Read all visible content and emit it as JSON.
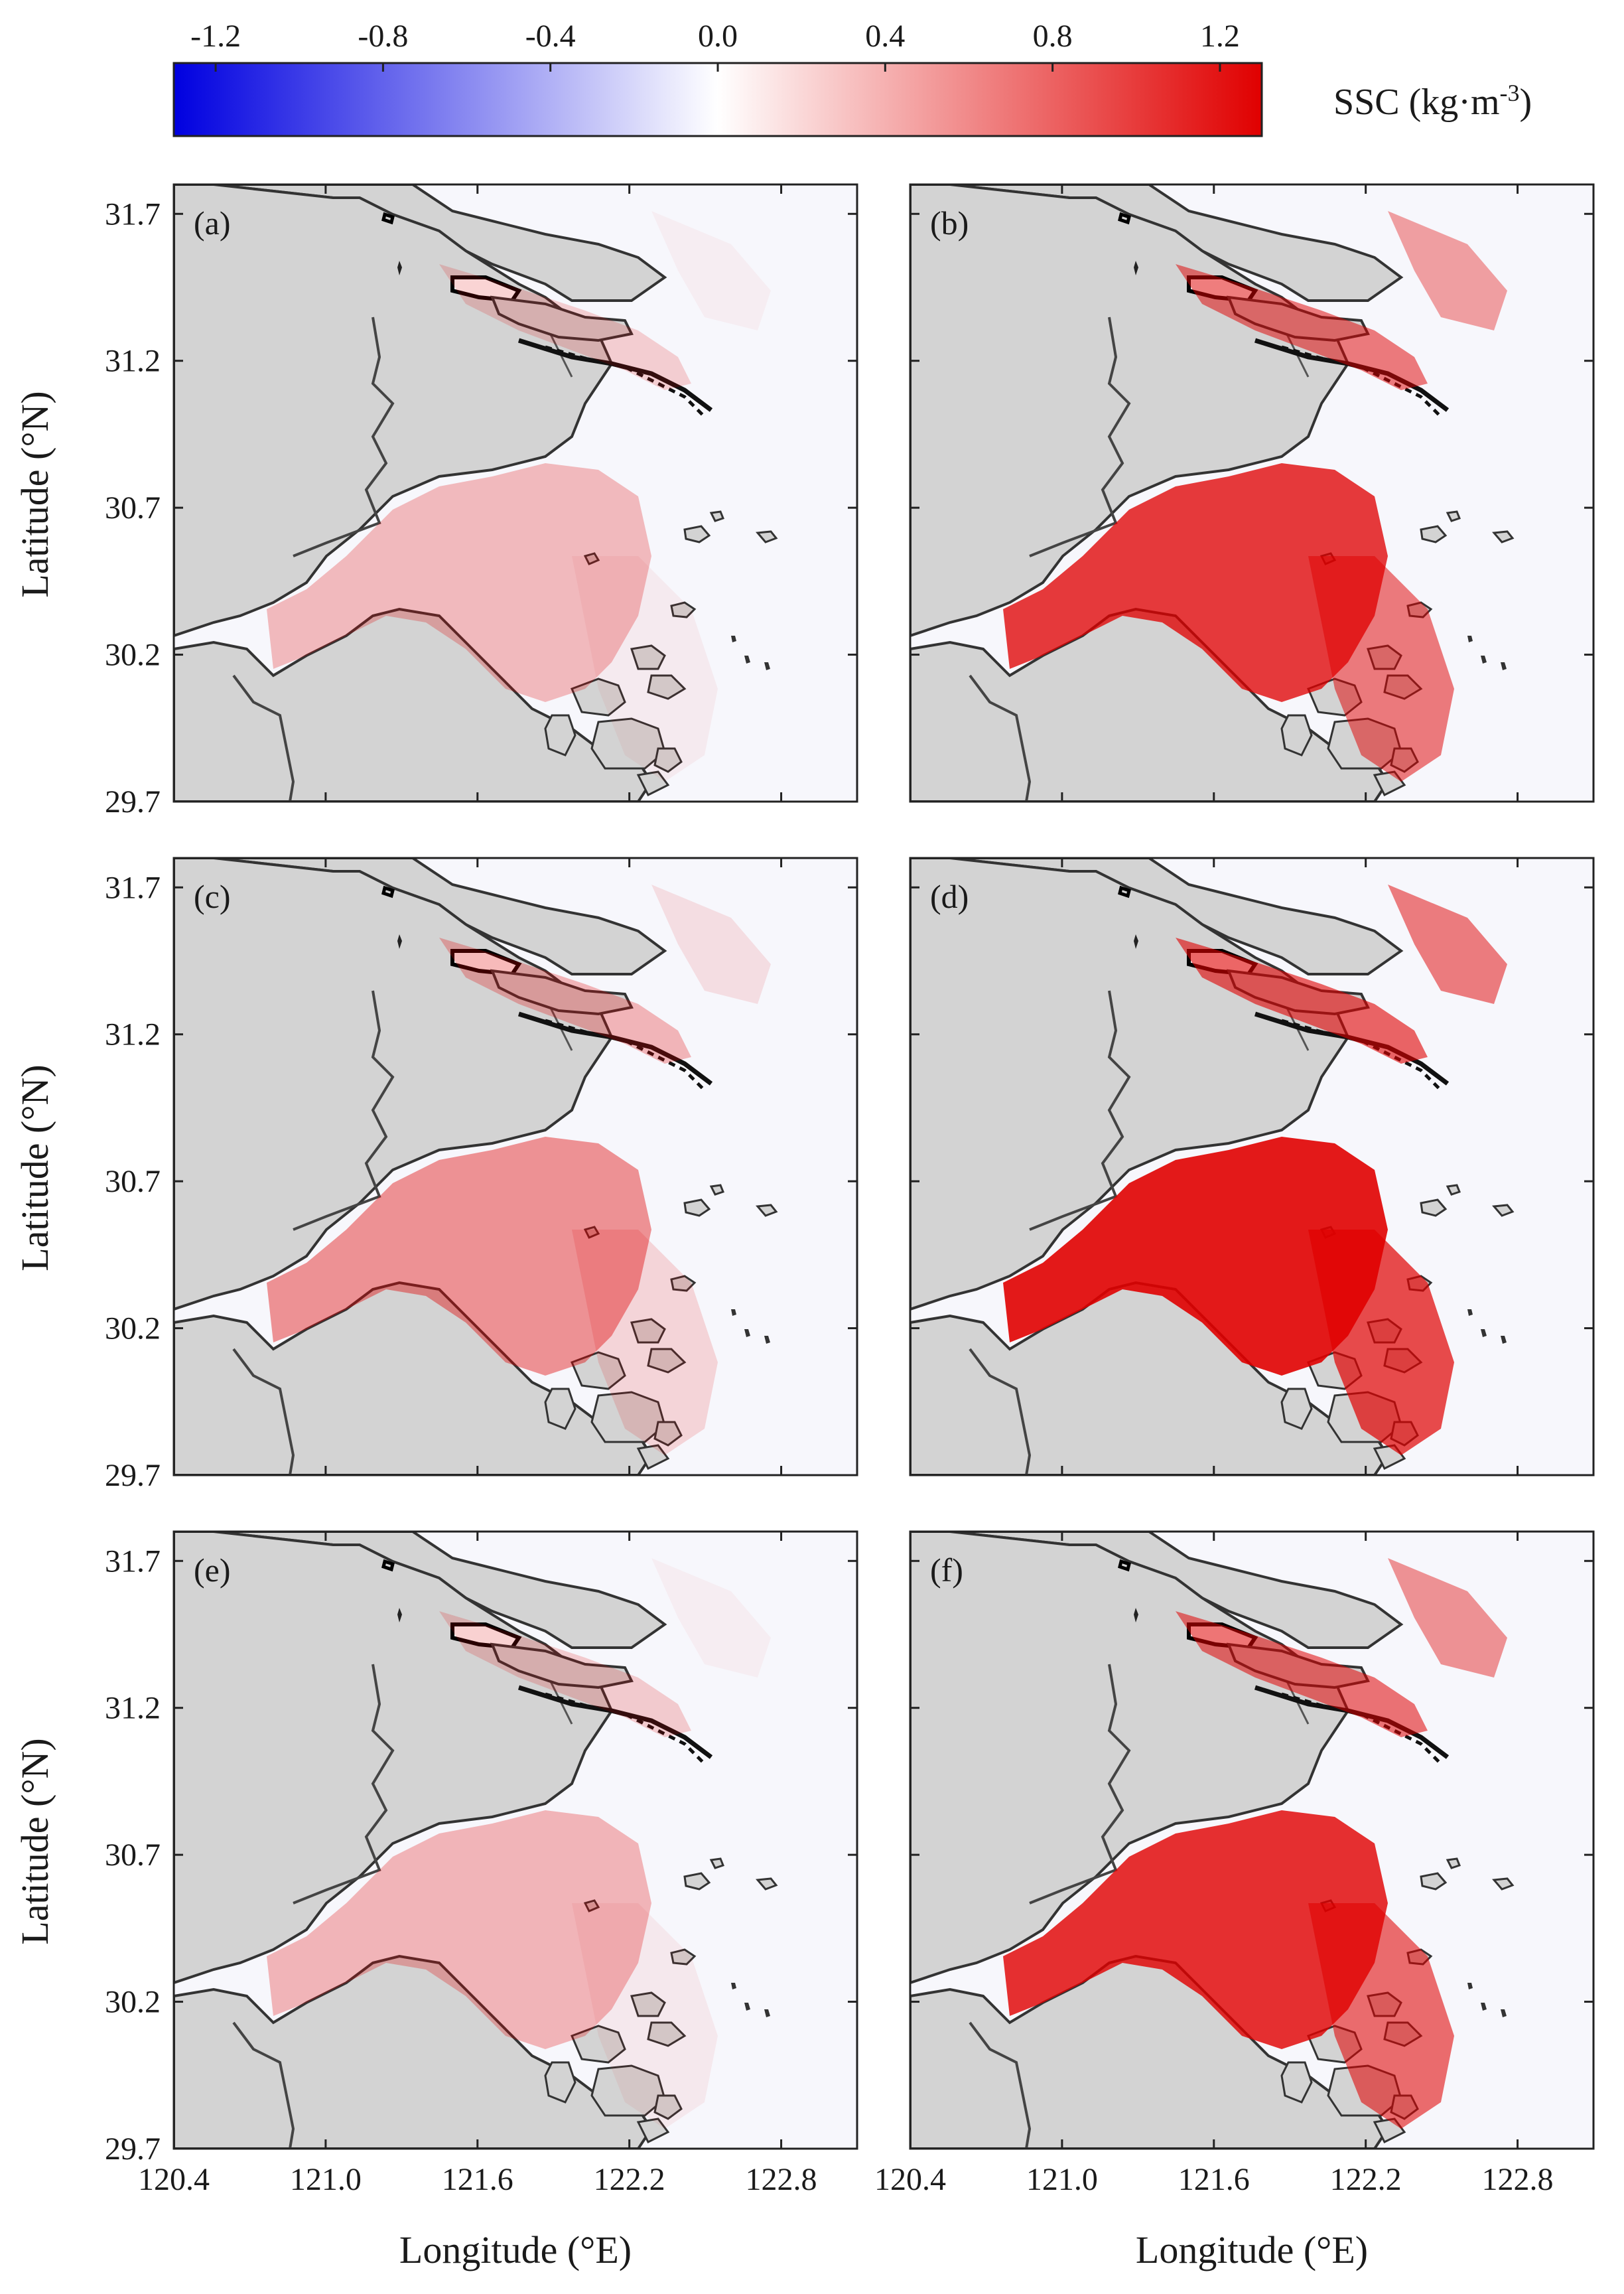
{
  "colorbar": {
    "ticks": [
      "-1.2",
      "-0.8",
      "-0.4",
      "0.0",
      "0.4",
      "0.8",
      "1.2"
    ],
    "label": "SSC (kg·m",
    "label_exp": "-3",
    "label_close": ")",
    "colors": {
      "min": "#0000e0",
      "zero": "#ffffff",
      "max": "#e00000"
    },
    "range": [
      -1.3,
      1.3
    ]
  },
  "axes": {
    "xlabel": "Longitude (°E)",
    "ylabel": "Latitude (°N)",
    "xticks": [
      "120.4",
      "121.0",
      "121.6",
      "122.2",
      "122.8"
    ],
    "yticks": [
      "31.7",
      "31.2",
      "30.7",
      "30.2",
      "29.7"
    ]
  },
  "panels": [
    {
      "label": "(a)",
      "intensity": 0.28
    },
    {
      "label": "(b)",
      "intensity": 0.85
    },
    {
      "label": "(c)",
      "intensity": 0.45
    },
    {
      "label": "(d)",
      "intensity": 1.0
    },
    {
      "label": "(e)",
      "intensity": 0.3
    },
    {
      "label": "(f)",
      "intensity": 0.9
    }
  ],
  "colors": {
    "land": "#d3d3d3",
    "water": "#f7f7fc",
    "coast": "#333333",
    "high_ssc": "#e00000"
  }
}
